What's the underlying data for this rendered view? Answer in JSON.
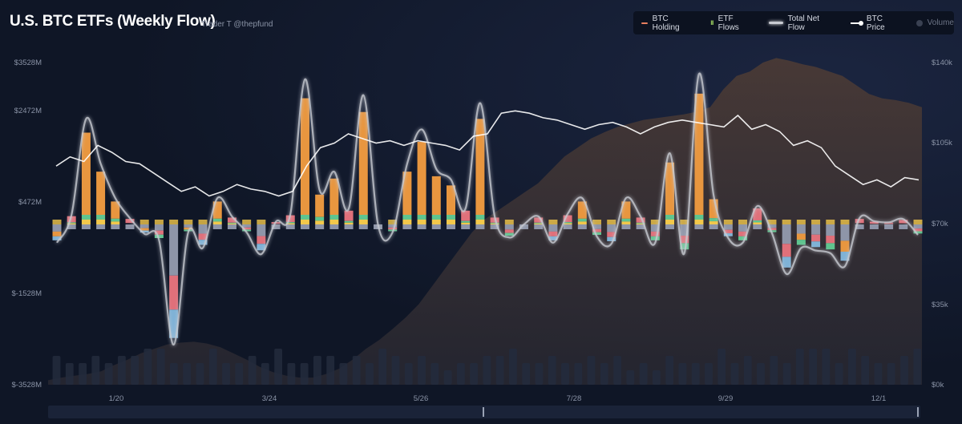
{
  "header": {
    "title": "U.S. BTC ETFs (Weekly Flow)",
    "subtitle": "Trader T @thepfund"
  },
  "legend": [
    {
      "label": "BTC Holding",
      "icon": "line",
      "color": "#e8805f",
      "active": true
    },
    {
      "label": "ETF Flows",
      "icon": "bars",
      "color": "#8fbf5a",
      "active": true
    },
    {
      "label": "Total Net Flow",
      "icon": "glow-line",
      "color": "#c8cbd2",
      "active": true
    },
    {
      "label": "BTC Price",
      "icon": "price-line",
      "color": "#ffffff",
      "active": true
    },
    {
      "label": "Volume",
      "icon": "dot",
      "color": "#3a4152",
      "active": false
    }
  ],
  "colors": {
    "etf_orange": "#e8963f",
    "etf_red": "#e0707a",
    "etf_green": "#5fc48f",
    "etf_yellow": "#f2c84b",
    "etf_blue": "#7fb2d6",
    "etf_gray": "#8e95a8",
    "holding_fill": "#3a2f2c",
    "volume": "#232b3d",
    "net_flow_line": "#c8cbd2",
    "price_line": "#ffffff"
  },
  "chart_data": {
    "type": "bar",
    "x_tick_labels": [
      "1/20",
      "3/24",
      "5/26",
      "7/28",
      "9/29",
      "12/1"
    ],
    "y_left": {
      "ticks": [
        "$3528M",
        "$2472M",
        "$472M",
        "$-1528M",
        "$-3528M"
      ],
      "range": [
        -3528,
        3528
      ]
    },
    "y_right": {
      "ticks": [
        "$140k",
        "$105k",
        "$70k",
        "$35k",
        "$0k"
      ],
      "range": [
        0,
        140000
      ]
    },
    "net_flow_musd": [
      -350,
      180,
      2000,
      1150,
      500,
      120,
      -180,
      -300,
      -2500,
      -150,
      -450,
      500,
      150,
      -150,
      -570,
      50,
      200,
      2750,
      650,
      1000,
      300,
      2450,
      0,
      -150,
      1150,
      1800,
      1050,
      850,
      300,
      2300,
      150,
      -250,
      0,
      150,
      -350,
      200,
      500,
      -230,
      -370,
      500,
      150,
      -350,
      1350,
      -550,
      2850,
      550,
      -260,
      -350,
      350,
      -170,
      -950,
      -450,
      -500,
      -550,
      -800,
      120,
      60,
      40,
      100,
      -200
    ],
    "btc_price_usd": [
      95000,
      99000,
      97000,
      104000,
      101000,
      97000,
      96000,
      92000,
      88000,
      84000,
      86000,
      82000,
      84000,
      87000,
      85000,
      84000,
      82000,
      84000,
      95000,
      103000,
      105000,
      109000,
      107000,
      105000,
      106000,
      104000,
      106000,
      105000,
      104000,
      102000,
      108000,
      109000,
      118000,
      119000,
      118000,
      116000,
      115000,
      113000,
      111000,
      113000,
      114000,
      112000,
      109000,
      112000,
      114000,
      115000,
      114000,
      113000,
      112000,
      117000,
      111000,
      113000,
      110000,
      104000,
      106000,
      103000,
      95000,
      91000,
      87000,
      89000,
      86000,
      90000,
      89000
    ],
    "btc_holding_series": [
      5,
      8,
      10,
      12,
      15,
      22,
      28,
      35,
      40,
      45,
      47,
      48,
      46,
      42,
      35,
      28,
      20,
      14,
      10,
      8,
      8,
      12,
      18,
      28,
      40,
      50,
      62,
      75,
      90,
      110,
      130,
      150,
      170,
      185,
      195,
      205,
      215,
      225,
      240,
      255,
      265,
      275,
      282,
      288,
      292,
      296,
      298,
      300,
      302,
      305,
      310,
      330,
      345,
      350,
      360,
      365,
      362,
      358,
      355,
      350,
      345,
      335,
      325,
      320,
      318,
      315,
      310
    ],
    "volume_series": [
      4,
      3,
      3,
      4,
      3,
      4,
      4,
      5,
      5,
      3,
      3,
      3,
      5,
      3,
      3,
      4,
      3,
      5,
      3,
      3,
      4,
      4,
      3,
      4,
      3,
      5,
      4,
      3,
      4,
      3,
      2,
      3,
      3,
      4,
      4,
      5,
      3,
      3,
      4,
      3,
      3,
      4,
      3,
      4,
      2,
      3,
      2,
      4,
      3,
      3,
      3,
      5,
      3,
      4,
      3,
      4,
      3,
      5,
      5,
      5,
      3,
      5,
      4,
      3,
      3,
      4,
      5
    ]
  }
}
